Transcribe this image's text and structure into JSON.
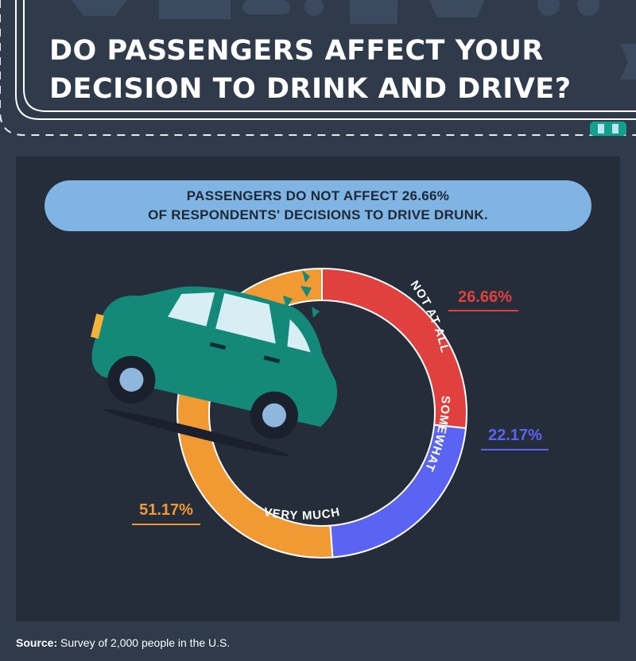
{
  "title": "DO PASSENGERS AFFECT YOUR DECISION TO DRINK AND DRIVE?",
  "callout": {
    "line1": "PASSENGERS DO NOT AFFECT 26.66%",
    "line2": "OF RESPONDENTS' DECISIONS TO DRIVE DRUNK."
  },
  "chart_data": {
    "type": "pie",
    "variant": "donut",
    "categories": [
      "NOT AT ALL",
      "SOMEWHAT",
      "VERY MUCH"
    ],
    "values": [
      26.66,
      22.17,
      51.17
    ],
    "value_labels": [
      "26.66%",
      "22.17%",
      "51.17%"
    ],
    "colors": [
      "#e0403e",
      "#5b63f2",
      "#f19a34"
    ],
    "start": "12 o'clock, clockwise"
  },
  "source": {
    "label": "Source:",
    "text": "Survey of 2,000 people in the U.S."
  },
  "colors": {
    "background": "#2f3a4b",
    "panel": "#252d3b",
    "callout": "#7fb4e3",
    "car": "#14897a"
  }
}
